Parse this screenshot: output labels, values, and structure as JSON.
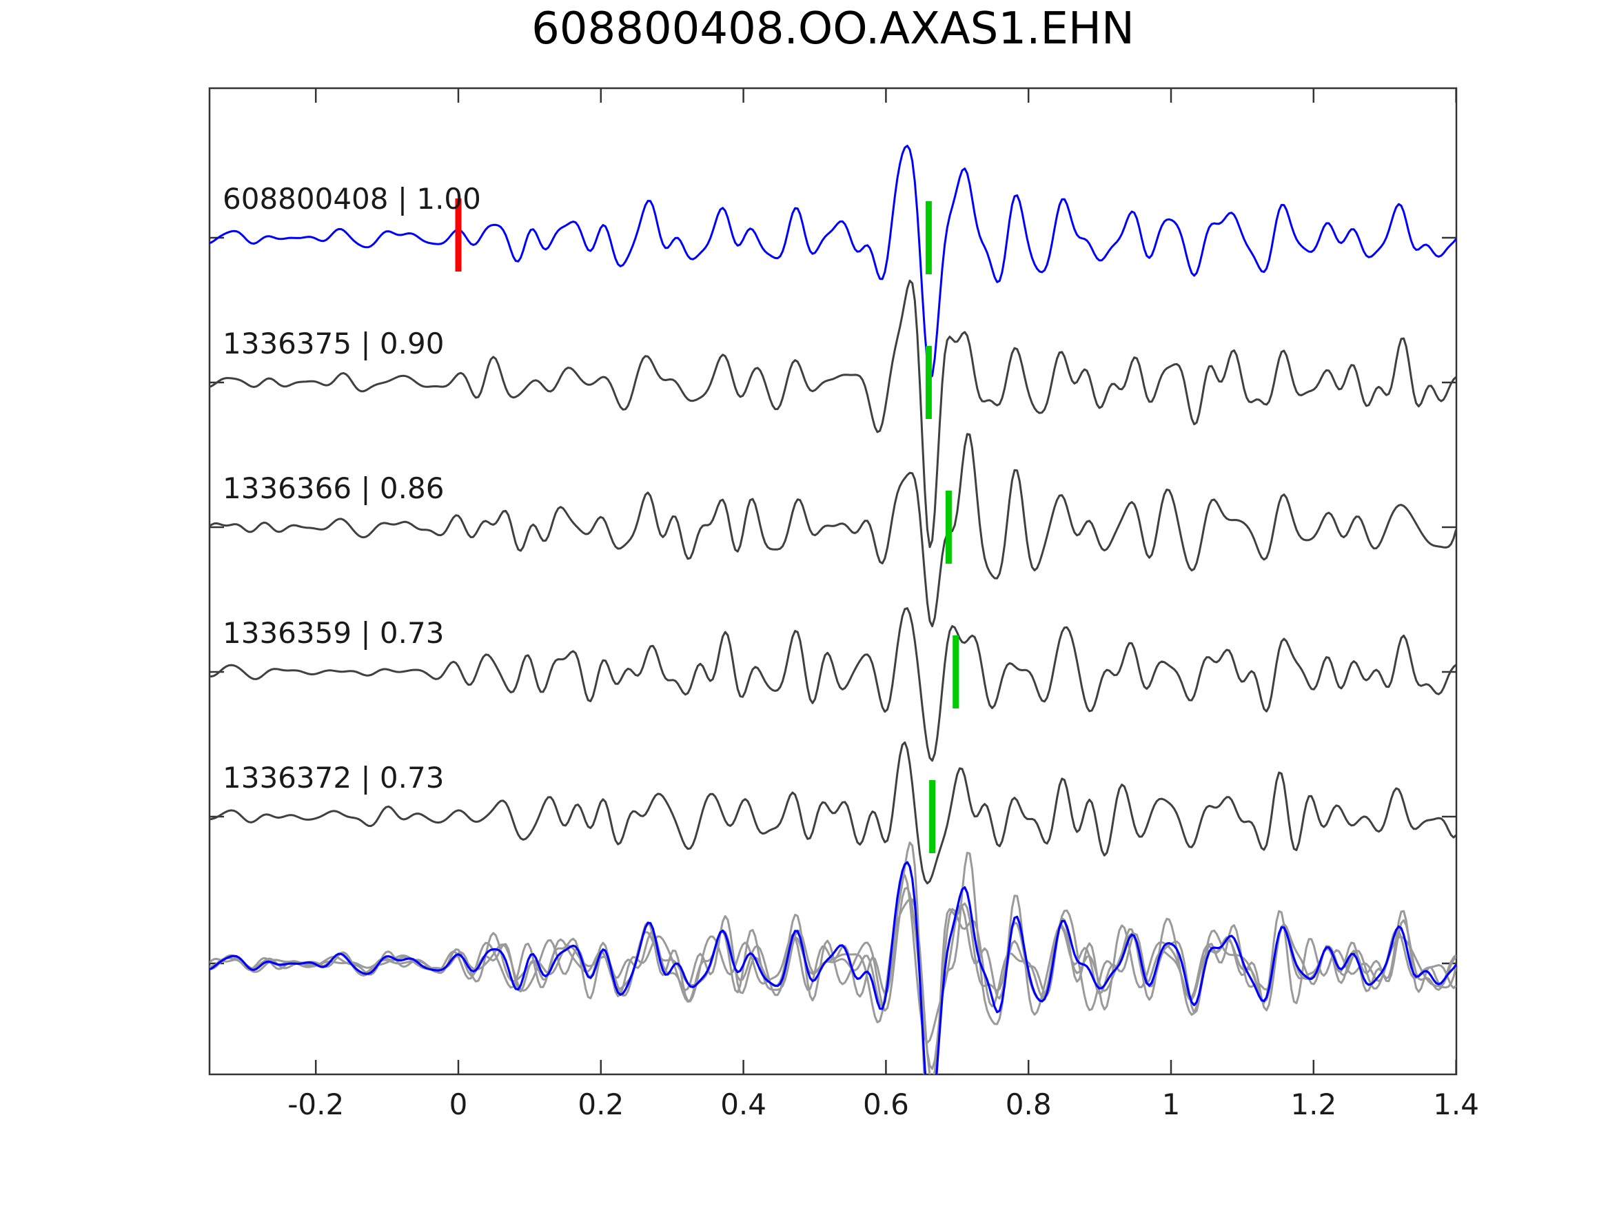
{
  "title": "608800408.OO.AXAS1.EHN",
  "chart_data": {
    "type": "line",
    "title": "608800408.OO.AXAS1.EHN",
    "subtitle": "",
    "xlabel": "",
    "ylabel": "",
    "xlim": [
      -0.35,
      1.4
    ],
    "x_ticks": [
      -0.2,
      0,
      0.2,
      0.4,
      0.6,
      0.8,
      1,
      1.2,
      1.4
    ],
    "x_tick_labels": [
      "-0.2",
      "0",
      "0.2",
      "0.4",
      "0.6",
      "0.8",
      "1",
      "1.2",
      "1.4"
    ],
    "grid": false,
    "legend": false,
    "axis_color": "#333333",
    "text_color": "#1a1a1a",
    "template_color": "#0000ff",
    "trace_color": "#404040",
    "overlay_gray": "#9a9a9a",
    "pick_color": "#ff0000",
    "detection_color": "#00cc00",
    "traces": [
      {
        "id": "608800408",
        "label": "608800408 | 1.00",
        "correlation": 1.0,
        "is_template": true,
        "pick_time": 0.0,
        "detection_time": 0.66
      },
      {
        "id": "1336375",
        "label": "1336375 | 0.90",
        "correlation": 0.9,
        "is_template": false,
        "detection_time": 0.66
      },
      {
        "id": "1336366",
        "label": "1336366 | 0.86",
        "correlation": 0.86,
        "is_template": false,
        "detection_time": 0.688
      },
      {
        "id": "1336359",
        "label": "1336359 | 0.73",
        "correlation": 0.73,
        "is_template": false,
        "detection_time": 0.698
      },
      {
        "id": "1336372",
        "label": "1336372 | 0.73",
        "correlation": 0.73,
        "is_template": false,
        "detection_time": 0.665
      }
    ],
    "overlay_panel": {
      "description": "all traces superimposed at bottom; detections in gray, template in blue"
    },
    "waveform_character": {
      "quiet_noise_before": 0.0,
      "onset_time": 0.0,
      "s_burst_center": 0.69,
      "trace_count": 5
    }
  }
}
